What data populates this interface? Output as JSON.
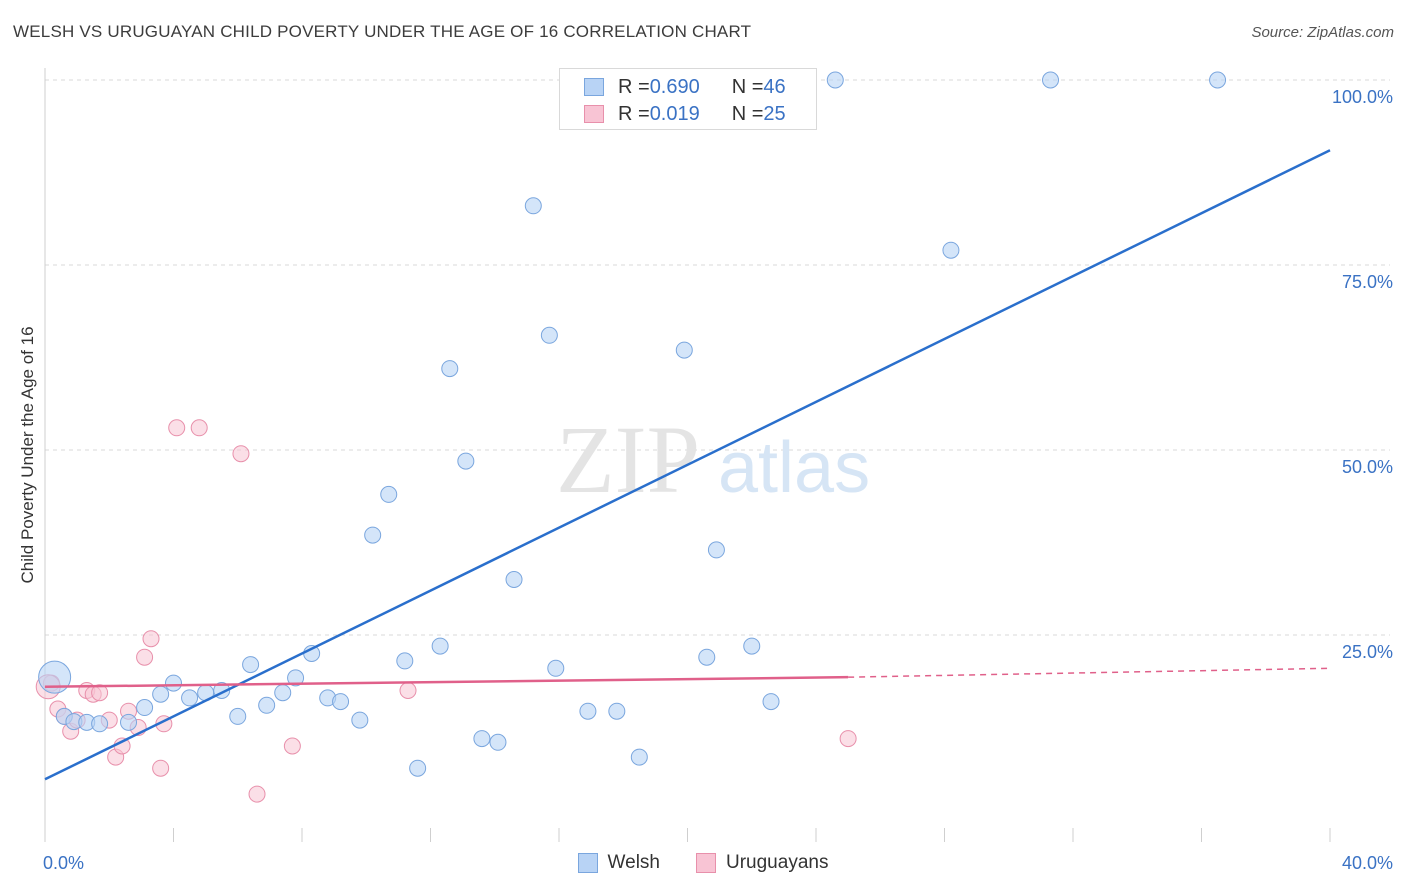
{
  "title": "WELSH VS URUGUAYAN CHILD POVERTY UNDER THE AGE OF 16 CORRELATION CHART",
  "source": "Source: ZipAtlas.com",
  "watermark": {
    "zip": "ZIP",
    "atlas": "atlas"
  },
  "legend_top": {
    "welsh": {
      "r_label": "R = ",
      "r_value": "0.690",
      "n_label": "N = ",
      "n_value": "46"
    },
    "uruguayan": {
      "r_label": "R = ",
      "r_value": "0.019",
      "n_label": "N = ",
      "n_value": "25"
    }
  },
  "colors": {
    "welsh_fill": "#b8d3f5",
    "welsh_stroke": "#7aa6de",
    "welsh_line": "#2a6fcc",
    "uru_fill": "#f8c4d4",
    "uru_stroke": "#e890ab",
    "uru_line": "#e0608a",
    "tick_label": "#3a72c4",
    "grid": "#d8d8d8"
  },
  "chart_data": {
    "type": "scatter",
    "title": "WELSH VS URUGUAYAN CHILD POVERTY UNDER THE AGE OF 16 CORRELATION CHART",
    "xlabel": "",
    "ylabel": "Child Poverty Under the Age of 16",
    "xlim": [
      0,
      40
    ],
    "ylim": [
      0,
      105
    ],
    "x_tick_labels": [
      {
        "value": 0,
        "label": "0.0%"
      },
      {
        "value": 40,
        "label": "40.0%"
      }
    ],
    "y_tick_labels": [
      {
        "value": 25,
        "label": "25.0%"
      },
      {
        "value": 50,
        "label": "50.0%"
      },
      {
        "value": 75,
        "label": "75.0%"
      },
      {
        "value": 100,
        "label": "100.0%"
      }
    ],
    "grid": true,
    "legend_position": "bottom",
    "series": [
      {
        "name": "Welsh",
        "points": [
          [
            0.3,
            19.3
          ],
          [
            0.6,
            14
          ],
          [
            0.9,
            13.3
          ],
          [
            1.3,
            13.2
          ],
          [
            1.7,
            13
          ],
          [
            2.6,
            13.2
          ],
          [
            3.1,
            15.2
          ],
          [
            3.6,
            17
          ],
          [
            4.0,
            18.5
          ],
          [
            4.5,
            16.5
          ],
          [
            5.0,
            17.2
          ],
          [
            5.5,
            17.5
          ],
          [
            6.0,
            14
          ],
          [
            6.4,
            21
          ],
          [
            6.9,
            15.5
          ],
          [
            7.4,
            17.2
          ],
          [
            7.8,
            19.2
          ],
          [
            8.3,
            22.5
          ],
          [
            8.8,
            16.5
          ],
          [
            9.2,
            16
          ],
          [
            9.8,
            13.5
          ],
          [
            10.2,
            38.5
          ],
          [
            10.7,
            44
          ],
          [
            11.2,
            21.5
          ],
          [
            11.6,
            7
          ],
          [
            12.3,
            23.5
          ],
          [
            12.6,
            61
          ],
          [
            13.1,
            48.5
          ],
          [
            13.6,
            11
          ],
          [
            14.1,
            10.5
          ],
          [
            14.6,
            32.5
          ],
          [
            15.2,
            83
          ],
          [
            15.7,
            65.5
          ],
          [
            15.9,
            20.5
          ],
          [
            16.9,
            14.7
          ],
          [
            17.8,
            14.7
          ],
          [
            18.5,
            8.5
          ],
          [
            19.9,
            63.5
          ],
          [
            20.6,
            22
          ],
          [
            20.9,
            36.5
          ],
          [
            22.0,
            23.5
          ],
          [
            22.6,
            16
          ],
          [
            24.6,
            100
          ],
          [
            28.2,
            77
          ],
          [
            31.3,
            100
          ],
          [
            36.5,
            100
          ]
        ],
        "trend": {
          "x": [
            0,
            40
          ],
          "y": [
            5.5,
            90.5
          ]
        }
      },
      {
        "name": "Uruguayans",
        "points": [
          [
            0.2,
            18.5
          ],
          [
            0.4,
            15
          ],
          [
            0.6,
            14
          ],
          [
            0.8,
            12
          ],
          [
            1.0,
            13.5
          ],
          [
            1.3,
            17.5
          ],
          [
            1.5,
            17
          ],
          [
            1.7,
            17.2
          ],
          [
            2.0,
            13.5
          ],
          [
            2.2,
            8.5
          ],
          [
            2.4,
            10
          ],
          [
            2.6,
            14.7
          ],
          [
            2.9,
            12.5
          ],
          [
            3.1,
            22
          ],
          [
            3.3,
            24.5
          ],
          [
            3.6,
            7
          ],
          [
            3.7,
            13
          ],
          [
            4.1,
            53
          ],
          [
            4.8,
            53
          ],
          [
            6.1,
            49.5
          ],
          [
            6.6,
            3.5
          ],
          [
            7.7,
            10
          ],
          [
            11.3,
            17.5
          ],
          [
            25.0,
            11
          ],
          [
            0.1,
            18
          ]
        ],
        "trend": {
          "x": [
            0,
            25
          ],
          "y": [
            18,
            19.3
          ]
        },
        "trend_extension": {
          "x": [
            25,
            40
          ],
          "y": [
            19.3,
            20.5
          ]
        }
      }
    ]
  },
  "bottom_legend": [
    {
      "key": "welsh",
      "label": "Welsh"
    },
    {
      "key": "uru",
      "label": "Uruguayans"
    }
  ]
}
